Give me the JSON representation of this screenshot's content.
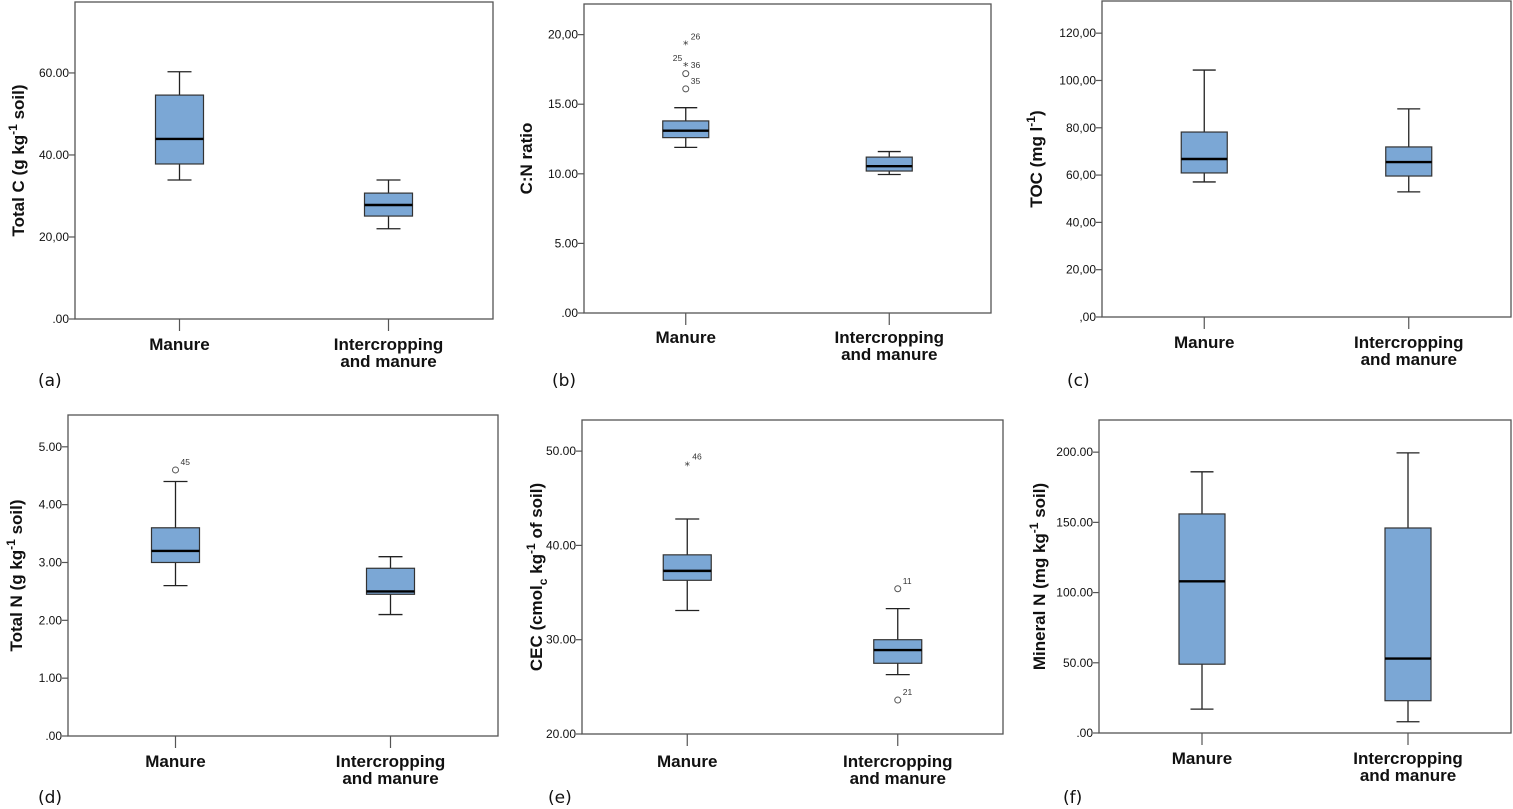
{
  "figure_title": "",
  "chart_data": [
    {
      "id": "a",
      "type": "boxplot",
      "panel_label": "(a)",
      "ylabel": "Total C (g kg",
      "ylabel_sup": "-1",
      "ylabel_tail": " soil)",
      "ylim": [
        0,
        77.3
      ],
      "yticks": [
        0,
        20,
        40,
        60
      ],
      "ytick_labels": [
        ".00",
        "20,00",
        "40.00",
        "60.00"
      ],
      "categories": [
        "Manure",
        "Intercropping and manure"
      ],
      "category_lines": [
        [
          "Manure"
        ],
        [
          "Intercropping",
          "and manure"
        ]
      ],
      "box_color": "#7BA7D5",
      "boxes": [
        {
          "min": 33.9,
          "q1": 37.8,
          "median": 43.9,
          "q3": 54.6,
          "max": 60.3,
          "outliers": []
        },
        {
          "min": 22.0,
          "q1": 25.1,
          "median": 27.8,
          "q3": 30.7,
          "max": 33.9,
          "outliers": []
        }
      ]
    },
    {
      "id": "b",
      "type": "boxplot",
      "panel_label": "(b)",
      "ylabel": "C:N ratio",
      "ylabel_sup": "",
      "ylabel_tail": "",
      "ylim": [
        0,
        22.2
      ],
      "yticks": [
        0,
        5,
        10,
        15,
        20
      ],
      "ytick_labels": [
        ".00",
        "5.00",
        "10.00",
        "15.00",
        "20,00"
      ],
      "categories": [
        "Manure",
        "Intercropping and manure"
      ],
      "category_lines": [
        [
          "Manure"
        ],
        [
          "Intercropping",
          "and manure"
        ]
      ],
      "box_color": "#7BA7D5",
      "boxes": [
        {
          "min": 11.9,
          "q1": 12.6,
          "median": 13.1,
          "q3": 13.8,
          "max": 14.75,
          "outliers": [
            {
              "value": 19.35,
              "marker": "star",
              "label": "26",
              "label_side": "right"
            },
            {
              "value": 17.8,
              "marker": "star",
              "label": "36",
              "label_side": "right",
              "extra_label": "25"
            },
            {
              "value": 17.2,
              "marker": "circle",
              "label": "",
              "label_side": "right"
            },
            {
              "value": 16.1,
              "marker": "circle",
              "label": "35",
              "label_side": "right-up"
            }
          ]
        },
        {
          "min": 9.95,
          "q1": 10.2,
          "median": 10.55,
          "q3": 11.2,
          "max": 11.6,
          "outliers": []
        }
      ]
    },
    {
      "id": "c",
      "type": "boxplot",
      "panel_label": "(c)",
      "ylabel": "TOC (mg l",
      "ylabel_sup": "-1",
      "ylabel_tail": ")",
      "ylim": [
        0,
        133.6
      ],
      "yticks": [
        0,
        20,
        40,
        60,
        80,
        100,
        120
      ],
      "ytick_labels": [
        ",00",
        "20,00",
        "40,00",
        "60,00",
        "80,00",
        "100,00",
        "120,00"
      ],
      "categories": [
        "Manure",
        "Intercropping and manure"
      ],
      "category_lines": [
        [
          "Manure"
        ],
        [
          "Intercropping",
          "and manure"
        ]
      ],
      "box_color": "#7BA7D5",
      "boxes": [
        {
          "min": 57.1,
          "q1": 60.9,
          "median": 66.8,
          "q3": 78.2,
          "max": 104.4,
          "outliers": []
        },
        {
          "min": 52.9,
          "q1": 59.6,
          "median": 65.5,
          "q3": 71.9,
          "max": 88.0,
          "outliers": []
        }
      ]
    },
    {
      "id": "d",
      "type": "boxplot",
      "panel_label": "(d)",
      "ylabel": "Total N (g kg",
      "ylabel_sup": "-1",
      "ylabel_tail": " soil)",
      "ylim": [
        0,
        5.55
      ],
      "yticks": [
        0,
        1,
        2,
        3,
        4,
        5
      ],
      "ytick_labels": [
        ".00",
        "1.00",
        "2.00",
        "3.00",
        "4.00",
        "5.00"
      ],
      "categories": [
        "Manure",
        "Intercropping and manure"
      ],
      "category_lines": [
        [
          "Manure"
        ],
        [
          "Intercropping",
          "and manure"
        ]
      ],
      "box_color": "#7BA7D5",
      "boxes": [
        {
          "min": 2.6,
          "q1": 3.0,
          "median": 3.2,
          "q3": 3.6,
          "max": 4.4,
          "outliers": [
            {
              "value": 4.6,
              "marker": "circle",
              "label": "45",
              "label_side": "right-up"
            }
          ]
        },
        {
          "min": 2.1,
          "q1": 2.45,
          "median": 2.5,
          "q3": 2.9,
          "max": 3.1,
          "outliers": []
        }
      ]
    },
    {
      "id": "e",
      "type": "boxplot",
      "panel_label": "(e)",
      "ylabel": "CEC (cmol",
      "ylabel_sub": "c",
      "ylabel_mid": " kg",
      "ylabel_sup": "-1",
      "ylabel_tail": " of soil)",
      "ylim": [
        20,
        53.3
      ],
      "yticks": [
        20,
        30,
        40,
        50
      ],
      "ytick_labels": [
        "20.00",
        "30.00",
        "40.00",
        "50.00"
      ],
      "categories": [
        "Manure",
        "Intercropping and manure"
      ],
      "category_lines": [
        [
          "Manure"
        ],
        [
          "Intercropping",
          "and manure"
        ]
      ],
      "box_color": "#7BA7D5",
      "boxes": [
        {
          "min": 33.1,
          "q1": 36.3,
          "median": 37.3,
          "q3": 39.0,
          "max": 42.8,
          "outliers": [
            {
              "value": 48.6,
              "marker": "star",
              "label": "46",
              "label_side": "right-up"
            }
          ]
        },
        {
          "min": 26.3,
          "q1": 27.5,
          "median": 28.9,
          "q3": 30.0,
          "max": 33.3,
          "outliers": [
            {
              "value": 35.4,
              "marker": "circle",
              "label": "11",
              "label_side": "right-up"
            },
            {
              "value": 23.6,
              "marker": "circle",
              "label": "21",
              "label_side": "right-up"
            }
          ]
        }
      ]
    },
    {
      "id": "f",
      "type": "boxplot",
      "panel_label": "(f)",
      "ylabel": "Mineral N (mg kg",
      "ylabel_sup": "-1",
      "ylabel_tail": " soil)",
      "ylim": [
        0,
        222.9
      ],
      "yticks": [
        0,
        50,
        100,
        150,
        200
      ],
      "ytick_labels": [
        ".00",
        "50.00",
        "100.00",
        "150.00",
        "200.00"
      ],
      "categories": [
        "Manure",
        "Intercropping and manure"
      ],
      "category_lines": [
        [
          "Manure"
        ],
        [
          "Intercropping",
          "and manure"
        ]
      ],
      "box_color": "#7BA7D5",
      "boxes": [
        {
          "min": 17,
          "q1": 49,
          "median": 108,
          "q3": 156,
          "max": 186,
          "outliers": []
        },
        {
          "min": 8,
          "q1": 23,
          "median": 53,
          "q3": 146,
          "max": 199.5,
          "outliers": []
        }
      ]
    }
  ]
}
